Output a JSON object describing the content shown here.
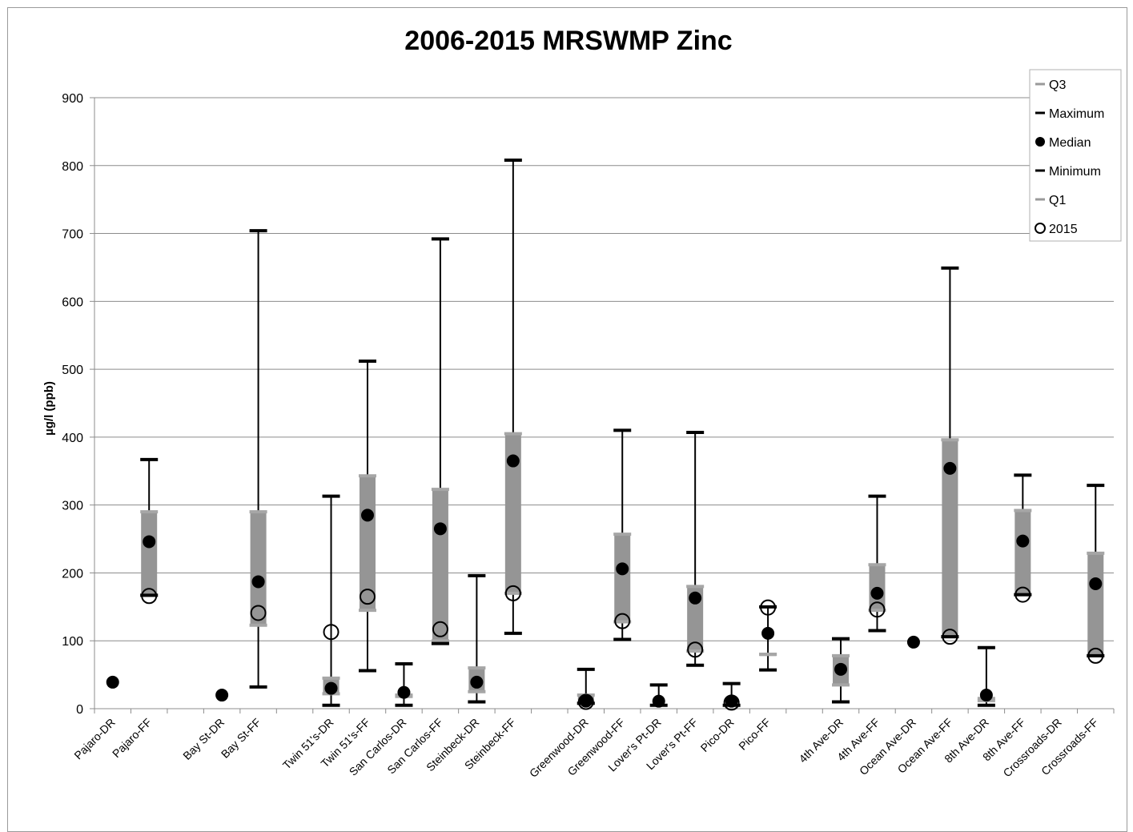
{
  "chart_data": {
    "type": "box",
    "title": "2006-2015 MRSWMP Zinc",
    "xlabel": "",
    "ylabel": "µg/l  (ppb)",
    "ylim": [
      0,
      900
    ],
    "yticks": [
      0,
      100,
      200,
      300,
      400,
      500,
      600,
      700,
      800,
      900
    ],
    "grid": true,
    "legend_position": "top-right",
    "legend": [
      {
        "key": "q3",
        "label": "Q3",
        "marker": "dash",
        "color": "#9a9a9a"
      },
      {
        "key": "max",
        "label": "Maximum",
        "marker": "dash",
        "color": "#000000"
      },
      {
        "key": "median",
        "label": "Median",
        "marker": "filled-circle",
        "color": "#000000"
      },
      {
        "key": "min",
        "label": "Minimum",
        "marker": "dash",
        "color": "#000000"
      },
      {
        "key": "q1",
        "label": "Q1",
        "marker": "dash",
        "color": "#9a9a9a"
      },
      {
        "key": "y2015",
        "label": "2015",
        "marker": "open-circle",
        "color": "#000000"
      }
    ],
    "colors": {
      "box": "#959595",
      "whisker": "#000000",
      "grid": "#8c8c8c",
      "quartile": "#a6a6a6"
    },
    "categories": [
      "Pajaro-DR",
      "Pajaro-FF",
      "",
      "Bay St-DR",
      "Bay St-FF",
      "",
      "Twin 51's-DR",
      "Twin 51's-FF",
      "San Carlos-DR",
      "San Carlos-FF",
      "Steinbeck-DR",
      "Steinbeck-FF",
      "",
      "Greenwood-DR",
      "Greenwood-FF",
      "Lover's Pt-DR",
      "Lover's Pt-FF",
      "Pico-DR",
      "Pico-FF",
      "",
      "4th Ave-DR",
      "4th Ave-FF",
      "Ocean Ave-DR",
      "Ocean Ave-FF",
      "8th Ave-DR",
      "8th Ave-FF",
      "Crossroads-DR",
      "Crossroads-FF"
    ],
    "series": [
      {
        "name": "Q3",
        "values": [
          null,
          290,
          null,
          null,
          290,
          null,
          45,
          343,
          20,
          323,
          60,
          405,
          null,
          20,
          257,
          null,
          180,
          null,
          80,
          null,
          78,
          212,
          null,
          396,
          15,
          292,
          null,
          229
        ]
      },
      {
        "name": "Maximum",
        "values": [
          null,
          367,
          null,
          null,
          704,
          null,
          313,
          512,
          66,
          692,
          196,
          808,
          null,
          58,
          410,
          35,
          407,
          37,
          150,
          null,
          103,
          313,
          null,
          649,
          90,
          344,
          null,
          329
        ]
      },
      {
        "name": "Median",
        "values": [
          39,
          246,
          null,
          20,
          187,
          null,
          30,
          285,
          24,
          265,
          39,
          365,
          null,
          11,
          206,
          11,
          163,
          11,
          111,
          null,
          58,
          170,
          98,
          354,
          20,
          247,
          null,
          184
        ]
      },
      {
        "name": "Minimum",
        "values": [
          null,
          167,
          null,
          null,
          32,
          null,
          5,
          56,
          5,
          96,
          10,
          111,
          null,
          8,
          102,
          5,
          64,
          5,
          57,
          null,
          10,
          115,
          null,
          106,
          5,
          168,
          null,
          78
        ]
      },
      {
        "name": "Q1",
        "values": [
          null,
          167,
          null,
          null,
          123,
          null,
          22,
          145,
          18,
          100,
          25,
          170,
          null,
          8,
          128,
          5,
          85,
          5,
          80,
          null,
          35,
          145,
          null,
          106,
          12,
          168,
          null,
          78
        ]
      },
      {
        "name": "2015",
        "values": [
          null,
          166,
          null,
          null,
          141,
          null,
          113,
          165,
          null,
          117,
          null,
          170,
          null,
          10,
          129,
          null,
          87,
          9,
          149,
          null,
          null,
          146,
          null,
          106,
          null,
          168,
          null,
          78
        ]
      }
    ]
  }
}
